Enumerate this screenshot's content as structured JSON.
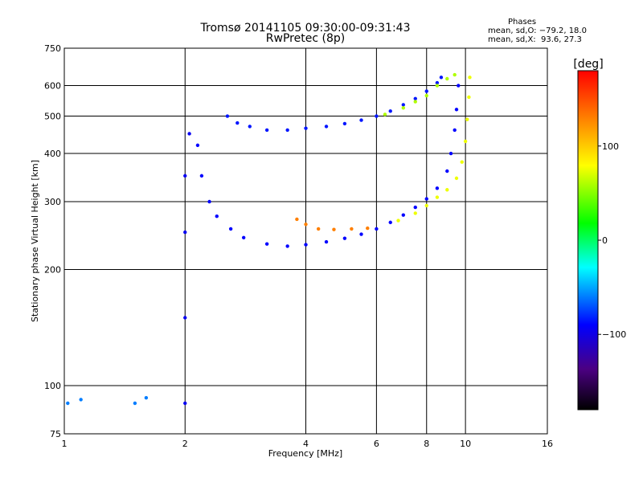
{
  "title_line1": "Tromsø 20141105 09:30:00-09:31:43",
  "title_line2": "RwPretec (8p)",
  "phases": {
    "title": "Phases",
    "line1": "mean, sd,O: −79.2, 18.0",
    "line2": "mean, sd,X:  93.6, 27.3"
  },
  "chart_data": {
    "type": "scatter",
    "xlabel": "Frequency [MHz]",
    "ylabel": "Stationary phase Virtual Height [km]",
    "x_scale": "log",
    "y_scale": "log",
    "xlim": [
      1,
      16
    ],
    "ylim": [
      75,
      750
    ],
    "x_ticks": [
      1,
      2,
      4,
      6,
      8,
      10,
      16
    ],
    "x_tick_labels": [
      "1",
      "2",
      "4",
      "6",
      "8",
      "10",
      "16"
    ],
    "y_ticks": [
      75,
      100,
      200,
      300,
      400,
      500,
      600,
      750
    ],
    "y_tick_labels": [
      "75",
      "100",
      "200",
      "300",
      "400",
      "500",
      "600",
      "750"
    ],
    "grid": true,
    "colorbar": {
      "label": "[deg]",
      "range": [
        -180,
        180
      ],
      "ticks": [
        100,
        0,
        -100
      ],
      "tick_labels": [
        "100",
        "0",
        "−100"
      ]
    },
    "series": [
      {
        "mode": "O",
        "points": [
          [
            2.55,
            500
          ],
          [
            2.7,
            480
          ],
          [
            2.9,
            470
          ],
          [
            3.2,
            460
          ],
          [
            3.6,
            460
          ],
          [
            4.0,
            465
          ],
          [
            4.5,
            470
          ],
          [
            5.0,
            478
          ],
          [
            5.5,
            488
          ],
          [
            6.0,
            500
          ],
          [
            6.5,
            515
          ],
          [
            7.0,
            535
          ],
          [
            7.5,
            555
          ],
          [
            8.0,
            580
          ],
          [
            8.5,
            610
          ],
          [
            8.7,
            630
          ]
        ],
        "phase": -85
      },
      {
        "mode": "O",
        "points": [
          [
            2.15,
            420
          ],
          [
            2.2,
            350
          ],
          [
            2.3,
            300
          ],
          [
            2.4,
            275
          ],
          [
            2.6,
            255
          ],
          [
            2.8,
            242
          ],
          [
            3.2,
            233
          ],
          [
            3.6,
            230
          ],
          [
            4.0,
            232
          ],
          [
            4.5,
            236
          ],
          [
            5.0,
            241
          ],
          [
            5.5,
            247
          ],
          [
            6.0,
            255
          ],
          [
            6.5,
            265
          ],
          [
            7.0,
            277
          ],
          [
            7.5,
            290
          ],
          [
            8.0,
            305
          ],
          [
            8.5,
            325
          ],
          [
            9.0,
            360
          ],
          [
            9.2,
            400
          ],
          [
            9.4,
            460
          ],
          [
            9.5,
            520
          ],
          [
            9.6,
            600
          ]
        ],
        "phase": -90
      },
      {
        "mode": "X",
        "points": [
          [
            6.3,
            505
          ],
          [
            7.0,
            525
          ],
          [
            7.5,
            545
          ],
          [
            8.0,
            565
          ],
          [
            8.5,
            600
          ],
          [
            9.0,
            625
          ],
          [
            9.4,
            640
          ]
        ],
        "phase": 60
      },
      {
        "mode": "X",
        "points": [
          [
            6.8,
            268
          ],
          [
            7.5,
            280
          ],
          [
            8.0,
            293
          ],
          [
            8.5,
            308
          ],
          [
            9.0,
            322
          ],
          [
            9.5,
            345
          ],
          [
            9.8,
            380
          ],
          [
            10.0,
            430
          ],
          [
            10.1,
            490
          ],
          [
            10.2,
            560
          ],
          [
            10.25,
            630
          ]
        ],
        "phase": 75
      },
      {
        "mode": "X",
        "points": [
          [
            3.8,
            270
          ],
          [
            4.0,
            262
          ],
          [
            4.3,
            255
          ],
          [
            4.7,
            254
          ],
          [
            5.2,
            255
          ],
          [
            5.7,
            256
          ]
        ],
        "phase": 130
      },
      {
        "mode": "O",
        "points": [
          [
            2.0,
            90
          ],
          [
            2.0,
            150
          ],
          [
            2.0,
            250
          ],
          [
            2.0,
            350
          ],
          [
            2.05,
            450
          ]
        ],
        "phase": -95
      },
      {
        "mode": "O",
        "points": [
          [
            1.02,
            90
          ],
          [
            1.1,
            92
          ],
          [
            1.5,
            90
          ],
          [
            1.6,
            93
          ]
        ],
        "phase": -60
      }
    ]
  }
}
